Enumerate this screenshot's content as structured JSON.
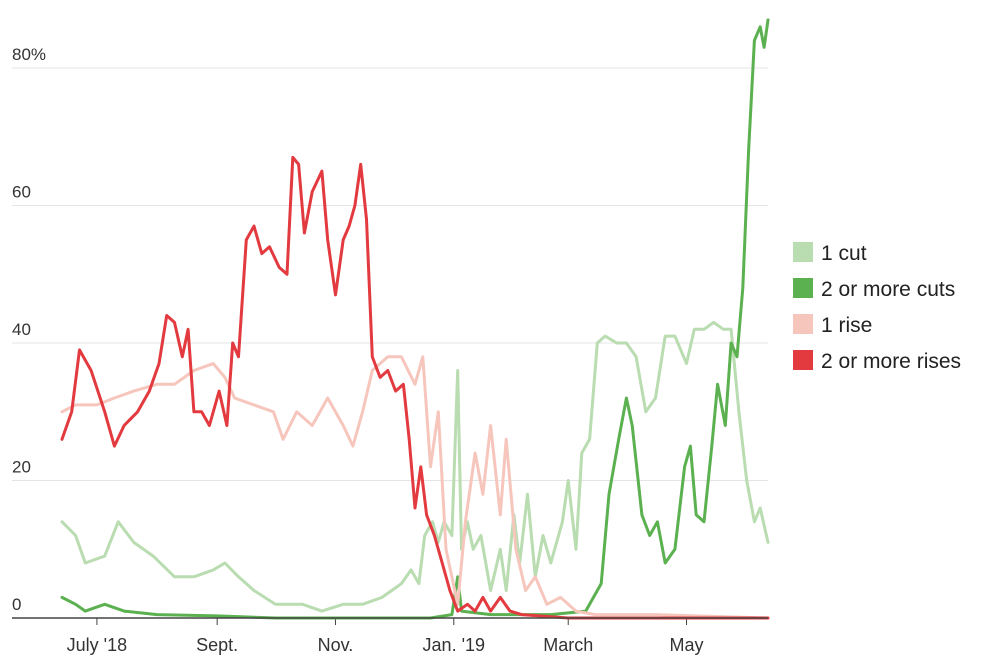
{
  "chart_data": {
    "type": "line",
    "title": "",
    "xlabel": "",
    "ylabel": "",
    "ylim": [
      0,
      88
    ],
    "y_ticks": [
      {
        "value": 0,
        "label": "0"
      },
      {
        "value": 20,
        "label": "20"
      },
      {
        "value": 40,
        "label": "40"
      },
      {
        "value": 60,
        "label": "60"
      },
      {
        "value": 80,
        "label": "80%"
      }
    ],
    "x_range": [
      "2018-06-13",
      "2019-06-12"
    ],
    "x_ticks": [
      {
        "date": "2018-07-01",
        "label": "July '18"
      },
      {
        "date": "2018-09-01",
        "label": "Sept."
      },
      {
        "date": "2018-11-01",
        "label": "Nov."
      },
      {
        "date": "2019-01-01",
        "label": "Jan. '19"
      },
      {
        "date": "2019-03-01",
        "label": "March"
      },
      {
        "date": "2019-05-01",
        "label": "May"
      }
    ],
    "grid": true,
    "legend_position": "right",
    "series": [
      {
        "name": "1 cut",
        "color": "#b9dcb1",
        "points": [
          [
            "2018-06-13",
            14
          ],
          [
            "2018-06-20",
            12
          ],
          [
            "2018-06-25",
            8
          ],
          [
            "2018-07-05",
            9
          ],
          [
            "2018-07-12",
            14
          ],
          [
            "2018-07-20",
            11
          ],
          [
            "2018-07-30",
            9
          ],
          [
            "2018-08-10",
            6
          ],
          [
            "2018-08-20",
            6
          ],
          [
            "2018-08-30",
            7
          ],
          [
            "2018-09-05",
            8
          ],
          [
            "2018-09-12",
            6
          ],
          [
            "2018-09-20",
            4
          ],
          [
            "2018-10-01",
            2
          ],
          [
            "2018-10-15",
            2
          ],
          [
            "2018-10-25",
            1
          ],
          [
            "2018-11-05",
            2
          ],
          [
            "2018-11-15",
            2
          ],
          [
            "2018-11-25",
            3
          ],
          [
            "2018-12-05",
            5
          ],
          [
            "2018-12-10",
            7
          ],
          [
            "2018-12-14",
            5
          ],
          [
            "2018-12-17",
            12
          ],
          [
            "2018-12-21",
            14
          ],
          [
            "2018-12-24",
            11
          ],
          [
            "2018-12-27",
            14
          ],
          [
            "2018-12-31",
            12
          ],
          [
            "2019-01-03",
            36
          ],
          [
            "2019-01-05",
            10
          ],
          [
            "2019-01-08",
            14
          ],
          [
            "2019-01-11",
            10
          ],
          [
            "2019-01-15",
            12
          ],
          [
            "2019-01-20",
            4
          ],
          [
            "2019-01-25",
            10
          ],
          [
            "2019-01-28",
            4
          ],
          [
            "2019-02-01",
            15
          ],
          [
            "2019-02-04",
            8
          ],
          [
            "2019-02-08",
            18
          ],
          [
            "2019-02-12",
            6
          ],
          [
            "2019-02-16",
            12
          ],
          [
            "2019-02-20",
            8
          ],
          [
            "2019-02-26",
            14
          ],
          [
            "2019-03-01",
            20
          ],
          [
            "2019-03-05",
            10
          ],
          [
            "2019-03-08",
            24
          ],
          [
            "2019-03-12",
            26
          ],
          [
            "2019-03-16",
            40
          ],
          [
            "2019-03-20",
            41
          ],
          [
            "2019-03-26",
            40
          ],
          [
            "2019-03-31",
            40
          ],
          [
            "2019-04-05",
            38
          ],
          [
            "2019-04-10",
            30
          ],
          [
            "2019-04-15",
            32
          ],
          [
            "2019-04-20",
            41
          ],
          [
            "2019-04-25",
            41
          ],
          [
            "2019-05-01",
            37
          ],
          [
            "2019-05-05",
            42
          ],
          [
            "2019-05-10",
            42
          ],
          [
            "2019-05-15",
            43
          ],
          [
            "2019-05-20",
            42
          ],
          [
            "2019-05-24",
            42
          ],
          [
            "2019-05-28",
            30
          ],
          [
            "2019-06-01",
            20
          ],
          [
            "2019-06-05",
            14
          ],
          [
            "2019-06-08",
            16
          ],
          [
            "2019-06-12",
            11
          ]
        ]
      },
      {
        "name": "2 or more cuts",
        "color": "#5bb04f",
        "points": [
          [
            "2018-06-13",
            3
          ],
          [
            "2018-06-20",
            2
          ],
          [
            "2018-06-25",
            1
          ],
          [
            "2018-07-05",
            2
          ],
          [
            "2018-07-15",
            1
          ],
          [
            "2018-08-01",
            0.5
          ],
          [
            "2018-09-01",
            0.3
          ],
          [
            "2018-10-01",
            0
          ],
          [
            "2018-11-15",
            0
          ],
          [
            "2018-12-20",
            0
          ],
          [
            "2018-12-31",
            0.5
          ],
          [
            "2019-01-03",
            6
          ],
          [
            "2019-01-05",
            1
          ],
          [
            "2019-01-20",
            0.5
          ],
          [
            "2019-02-20",
            0.5
          ],
          [
            "2019-03-10",
            1
          ],
          [
            "2019-03-18",
            5
          ],
          [
            "2019-03-22",
            18
          ],
          [
            "2019-03-27",
            26
          ],
          [
            "2019-03-31",
            32
          ],
          [
            "2019-04-03",
            28
          ],
          [
            "2019-04-08",
            15
          ],
          [
            "2019-04-12",
            12
          ],
          [
            "2019-04-16",
            14
          ],
          [
            "2019-04-20",
            8
          ],
          [
            "2019-04-25",
            10
          ],
          [
            "2019-04-30",
            22
          ],
          [
            "2019-05-03",
            25
          ],
          [
            "2019-05-06",
            15
          ],
          [
            "2019-05-10",
            14
          ],
          [
            "2019-05-14",
            25
          ],
          [
            "2019-05-17",
            34
          ],
          [
            "2019-05-21",
            28
          ],
          [
            "2019-05-24",
            40
          ],
          [
            "2019-05-27",
            38
          ],
          [
            "2019-05-30",
            48
          ],
          [
            "2019-06-02",
            68
          ],
          [
            "2019-06-05",
            84
          ],
          [
            "2019-06-08",
            86
          ],
          [
            "2019-06-10",
            83
          ],
          [
            "2019-06-12",
            87
          ]
        ]
      },
      {
        "name": "1 rise",
        "color": "#f6c6bd",
        "points": [
          [
            "2018-06-13",
            30
          ],
          [
            "2018-06-20",
            31
          ],
          [
            "2018-07-01",
            31
          ],
          [
            "2018-07-10",
            32
          ],
          [
            "2018-07-20",
            33
          ],
          [
            "2018-08-01",
            34
          ],
          [
            "2018-08-10",
            34
          ],
          [
            "2018-08-20",
            36
          ],
          [
            "2018-08-30",
            37
          ],
          [
            "2018-09-05",
            35
          ],
          [
            "2018-09-10",
            32
          ],
          [
            "2018-09-20",
            31
          ],
          [
            "2018-09-30",
            30
          ],
          [
            "2018-10-05",
            26
          ],
          [
            "2018-10-12",
            30
          ],
          [
            "2018-10-20",
            28
          ],
          [
            "2018-10-28",
            32
          ],
          [
            "2018-11-05",
            28
          ],
          [
            "2018-11-10",
            25
          ],
          [
            "2018-11-15",
            30
          ],
          [
            "2018-11-20",
            36
          ],
          [
            "2018-11-28",
            38
          ],
          [
            "2018-12-05",
            38
          ],
          [
            "2018-12-12",
            34
          ],
          [
            "2018-12-16",
            38
          ],
          [
            "2018-12-20",
            22
          ],
          [
            "2018-12-24",
            30
          ],
          [
            "2018-12-28",
            10
          ],
          [
            "2019-01-03",
            2
          ],
          [
            "2019-01-07",
            14
          ],
          [
            "2019-01-12",
            24
          ],
          [
            "2019-01-16",
            18
          ],
          [
            "2019-01-20",
            28
          ],
          [
            "2019-01-25",
            15
          ],
          [
            "2019-01-28",
            26
          ],
          [
            "2019-02-02",
            10
          ],
          [
            "2019-02-07",
            4
          ],
          [
            "2019-02-12",
            6
          ],
          [
            "2019-02-18",
            2
          ],
          [
            "2019-02-25",
            3
          ],
          [
            "2019-03-05",
            1
          ],
          [
            "2019-03-15",
            0.5
          ],
          [
            "2019-04-15",
            0.5
          ],
          [
            "2019-06-12",
            0
          ]
        ]
      },
      {
        "name": "2 or more rises",
        "color": "#e23a3f",
        "points": [
          [
            "2018-06-13",
            26
          ],
          [
            "2018-06-18",
            30
          ],
          [
            "2018-06-22",
            39
          ],
          [
            "2018-06-28",
            36
          ],
          [
            "2018-07-05",
            30
          ],
          [
            "2018-07-10",
            25
          ],
          [
            "2018-07-15",
            28
          ],
          [
            "2018-07-22",
            30
          ],
          [
            "2018-07-28",
            33
          ],
          [
            "2018-08-02",
            37
          ],
          [
            "2018-08-06",
            44
          ],
          [
            "2018-08-10",
            43
          ],
          [
            "2018-08-14",
            38
          ],
          [
            "2018-08-17",
            42
          ],
          [
            "2018-08-20",
            30
          ],
          [
            "2018-08-24",
            30
          ],
          [
            "2018-08-28",
            28
          ],
          [
            "2018-09-02",
            33
          ],
          [
            "2018-09-06",
            28
          ],
          [
            "2018-09-09",
            40
          ],
          [
            "2018-09-12",
            38
          ],
          [
            "2018-09-16",
            55
          ],
          [
            "2018-09-20",
            57
          ],
          [
            "2018-09-24",
            53
          ],
          [
            "2018-09-28",
            54
          ],
          [
            "2018-10-03",
            51
          ],
          [
            "2018-10-07",
            50
          ],
          [
            "2018-10-10",
            67
          ],
          [
            "2018-10-13",
            66
          ],
          [
            "2018-10-16",
            56
          ],
          [
            "2018-10-20",
            62
          ],
          [
            "2018-10-25",
            65
          ],
          [
            "2018-10-28",
            55
          ],
          [
            "2018-11-01",
            47
          ],
          [
            "2018-11-05",
            55
          ],
          [
            "2018-11-08",
            57
          ],
          [
            "2018-11-11",
            60
          ],
          [
            "2018-11-14",
            66
          ],
          [
            "2018-11-17",
            58
          ],
          [
            "2018-11-20",
            38
          ],
          [
            "2018-11-24",
            35
          ],
          [
            "2018-11-28",
            36
          ],
          [
            "2018-12-02",
            33
          ],
          [
            "2018-12-06",
            34
          ],
          [
            "2018-12-09",
            26
          ],
          [
            "2018-12-12",
            16
          ],
          [
            "2018-12-15",
            22
          ],
          [
            "2018-12-18",
            15
          ],
          [
            "2018-12-22",
            12
          ],
          [
            "2018-12-26",
            8
          ],
          [
            "2018-12-30",
            4
          ],
          [
            "2019-01-03",
            1
          ],
          [
            "2019-01-08",
            2
          ],
          [
            "2019-01-12",
            1
          ],
          [
            "2019-01-16",
            3
          ],
          [
            "2019-01-20",
            1
          ],
          [
            "2019-01-25",
            3
          ],
          [
            "2019-01-30",
            1
          ],
          [
            "2019-02-05",
            0.5
          ],
          [
            "2019-03-01",
            0
          ],
          [
            "2019-06-12",
            0
          ]
        ]
      }
    ]
  }
}
